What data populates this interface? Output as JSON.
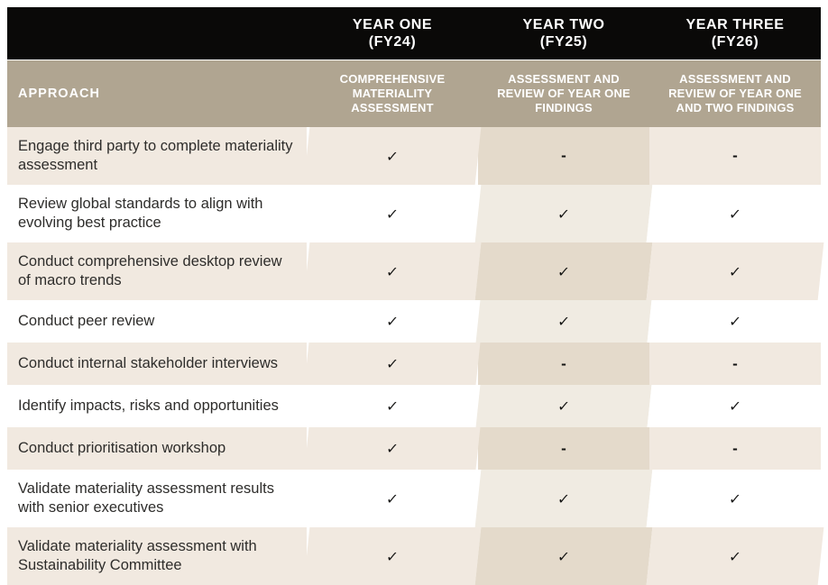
{
  "table": {
    "title_semantic": "Materiality assessment approach by year",
    "year_header": [
      {
        "label": "YEAR ONE",
        "fy": "(FY24)"
      },
      {
        "label": "YEAR TWO",
        "fy": "(FY25)"
      },
      {
        "label": "YEAR THREE",
        "fy": "(FY26)"
      }
    ],
    "approach_header": {
      "label": "APPROACH",
      "columns": [
        "COMPREHENSIVE MATERIALITY ASSESSMENT",
        "ASSESSMENT AND REVIEW OF YEAR ONE FINDINGS",
        "ASSESSMENT AND REVIEW OF YEAR ONE AND TWO FINDINGS"
      ]
    },
    "rows": [
      {
        "label": "Engage third party to complete materiality assessment",
        "marks": [
          "check",
          "dash",
          "dash"
        ]
      },
      {
        "label": "Review global standards to align with evolving best practice",
        "marks": [
          "check",
          "check",
          "check"
        ]
      },
      {
        "label": "Conduct comprehensive desktop review of macro trends",
        "marks": [
          "check",
          "check",
          "check"
        ]
      },
      {
        "label": "Conduct peer review",
        "marks": [
          "check",
          "check",
          "check"
        ]
      },
      {
        "label": "Conduct internal stakeholder interviews",
        "marks": [
          "check",
          "dash",
          "dash"
        ]
      },
      {
        "label": "Identify impacts, risks and opportunities",
        "marks": [
          "check",
          "check",
          "check"
        ]
      },
      {
        "label": "Conduct prioritisation workshop",
        "marks": [
          "check",
          "dash",
          "dash"
        ]
      },
      {
        "label": "Validate materiality assessment results with senior executives",
        "marks": [
          "check",
          "check",
          "check"
        ]
      },
      {
        "label": "Validate materiality assessment with Sustainability Committee",
        "marks": [
          "check",
          "check",
          "check"
        ]
      }
    ],
    "glyphs": {
      "check": "✓",
      "dash": "-"
    },
    "colors": {
      "header_black": "#0a0908",
      "header_tan": "#b0a591",
      "row_beige": "#f1e9e0",
      "row_white": "#ffffff",
      "fy25_column_tint_on_beige": "#e4dacb",
      "fy25_column_tint_on_white": "#f0ebe2",
      "body_text": "#2e2d2b"
    }
  }
}
